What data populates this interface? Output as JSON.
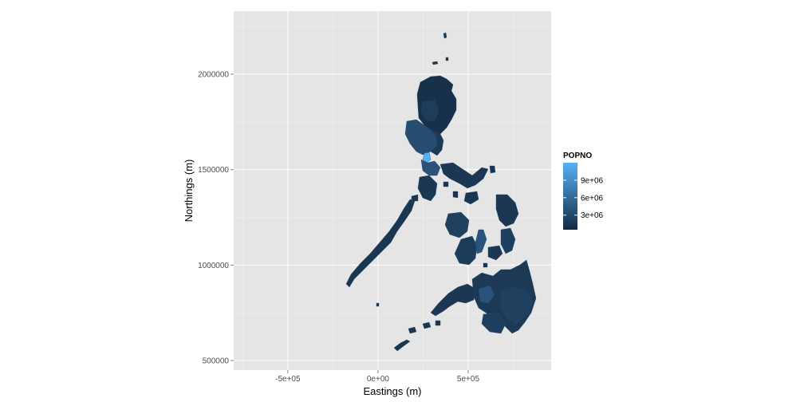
{
  "chart_data": {
    "type": "choropleth map",
    "xlabel": "Eastings (m)",
    "ylabel": "Northings (m)",
    "x_ticks": [
      {
        "value": -500000,
        "label": "-5e+05"
      },
      {
        "value": 0,
        "label": "0e+00"
      },
      {
        "value": 500000,
        "label": "5e+05"
      }
    ],
    "y_ticks": [
      {
        "value": 500000,
        "label": "500000"
      },
      {
        "value": 1000000,
        "label": "1000000"
      },
      {
        "value": 1500000,
        "label": "1500000"
      },
      {
        "value": 2000000,
        "label": "2000000"
      }
    ],
    "xlim": [
      -800000,
      960000
    ],
    "ylim": [
      450000,
      2330000
    ],
    "grid": true,
    "legend": {
      "title": "POPNO",
      "placement": "right",
      "breaks": [
        {
          "value": 3000000,
          "label": "3e+06"
        },
        {
          "value": 6000000,
          "label": "6e+06"
        },
        {
          "value": 9000000,
          "label": "9e+06"
        }
      ],
      "range": [
        500000,
        12000000
      ],
      "color_low": "#132b43",
      "color_high": "#56b1f7"
    },
    "colors": {
      "panel_background": "#e5e5e5",
      "grid_major": "#ffffff",
      "grid_minor": "#f2f2f2",
      "region_fill": "#1c3a55",
      "highlight_region_fill": "#56b1f7"
    }
  }
}
